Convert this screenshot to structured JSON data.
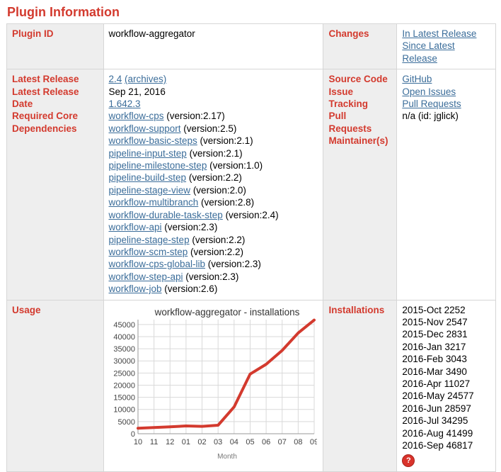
{
  "title": "Plugin Information",
  "labels": {
    "plugin_id": "Plugin ID",
    "changes": "Changes",
    "latest_release": "Latest Release",
    "latest_release_date": "Latest Release Date",
    "required_core": "Required Core",
    "dependencies": "Dependencies",
    "source_code": "Source Code",
    "issue_tracking": "Issue Tracking",
    "pull_requests": "Pull Requests",
    "maintainers": "Maintainer(s)",
    "usage": "Usage",
    "installations": "Installations"
  },
  "plugin_id": "workflow-aggregator",
  "changes": {
    "latest": "In Latest Release",
    "since": "Since Latest Release"
  },
  "release": {
    "version": "2.4",
    "archives": "(archives)",
    "date": "Sep 21, 2016",
    "core": "1.642.3"
  },
  "dependencies": [
    {
      "name": "workflow-cps",
      "version": " (version:2.17)"
    },
    {
      "name": "workflow-support",
      "version": " (version:2.5)"
    },
    {
      "name": "workflow-basic-steps",
      "version": " (version:2.1)"
    },
    {
      "name": "pipeline-input-step",
      "version": " (version:2.1)"
    },
    {
      "name": "pipeline-milestone-step",
      "version": " (version:1.0)"
    },
    {
      "name": "pipeline-build-step",
      "version": " (version:2.2)"
    },
    {
      "name": "pipeline-stage-view",
      "version": " (version:2.0)"
    },
    {
      "name": "workflow-multibranch",
      "version": " (version:2.8)"
    },
    {
      "name": "workflow-durable-task-step",
      "version": " (version:2.4)"
    },
    {
      "name": "workflow-api",
      "version": " (version:2.3)"
    },
    {
      "name": "pipeline-stage-step",
      "version": " (version:2.2)"
    },
    {
      "name": "workflow-scm-step",
      "version": " (version:2.2)"
    },
    {
      "name": "workflow-cps-global-lib",
      "version": " (version:2.3)"
    },
    {
      "name": "workflow-step-api",
      "version": " (version:2.3)"
    },
    {
      "name": "workflow-job",
      "version": " (version:2.6)"
    }
  ],
  "source": {
    "github": "GitHub",
    "open_issues": "Open Issues",
    "pull_requests": "Pull Requests",
    "maintainer": "n/a (id: jglick)"
  },
  "installations": [
    "2015-Oct 2252",
    "2015-Nov 2547",
    "2015-Dec 2831",
    "2016-Jan 3217",
    "2016-Feb 3043",
    "2016-Mar 3490",
    "2016-Apr 11027",
    "2016-May 24577",
    "2016-Jun 28597",
    "2016-Jul 34295",
    "2016-Aug 41499",
    "2016-Sep 46817"
  ],
  "help_icon": "question-icon",
  "colors": {
    "accent": "#d33a2e",
    "link": "#3b6d9a",
    "line": "#d33a2e",
    "label_bg": "#eeeeee"
  },
  "chart_data": {
    "type": "line",
    "title": "workflow-aggregator - installations",
    "xlabel": "Month",
    "ylabel": "",
    "categories": [
      "10",
      "11",
      "12",
      "01",
      "02",
      "03",
      "04",
      "05",
      "06",
      "07",
      "08",
      "09"
    ],
    "values": [
      2252,
      2547,
      2831,
      3217,
      3043,
      3490,
      11027,
      24577,
      28597,
      34295,
      41499,
      46817
    ],
    "yticks": [
      0,
      5000,
      10000,
      15000,
      20000,
      25000,
      30000,
      35000,
      40000,
      45000
    ],
    "ylim": [
      0,
      47000
    ],
    "grid": true,
    "legend": "none"
  }
}
